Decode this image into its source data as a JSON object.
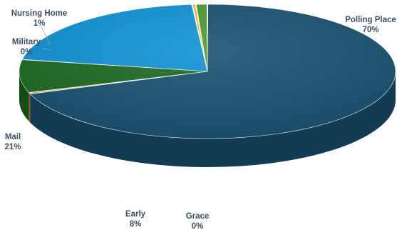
{
  "chart_data": {
    "type": "pie",
    "style": "3d",
    "title": "",
    "slices": [
      {
        "label": "Polling Place",
        "value": 70,
        "value_label": "70%",
        "color": "#1b5170",
        "side_color": "#133b54"
      },
      {
        "label": "Grace",
        "value": 0.3,
        "value_label": "0%",
        "color": "#e07a35",
        "side_color": "#a9591f"
      },
      {
        "label": "Early",
        "value": 8,
        "value_label": "8%",
        "color": "#1c6b23",
        "side_color": "#124d17"
      },
      {
        "label": "Mail",
        "value": 21,
        "value_label": "21%",
        "color": "#1192d3",
        "side_color": "#0d6fa3"
      },
      {
        "label": "Military",
        "value": 0.3,
        "value_label": "0%",
        "color": "#f0b43c",
        "side_color": "#b98a2a"
      },
      {
        "label": "Nursing Home",
        "value": 1,
        "value_label": "1%",
        "color": "#4f9a2e",
        "side_color": "#3a7421"
      }
    ],
    "legend": "none",
    "label_position": "outside"
  }
}
